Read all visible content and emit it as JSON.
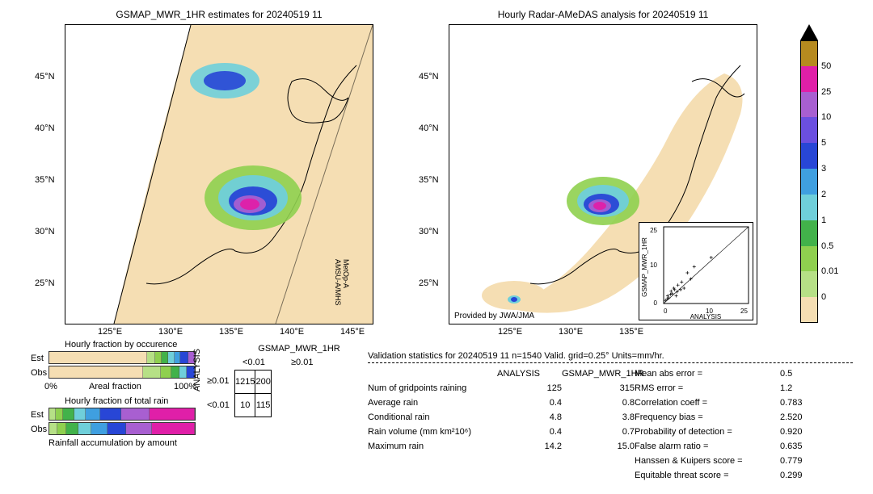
{
  "map_left": {
    "title": "GSMAP_MWR_1HR estimates for 20240519 11",
    "x_ticks": [
      "125°E",
      "130°E",
      "135°E",
      "140°E",
      "145°E"
    ],
    "y_ticks": [
      "25°N",
      "30°N",
      "35°N",
      "40°N",
      "45°N"
    ],
    "background_color": "#f5deb3",
    "swath_boundary_color": "#000000",
    "satellite_label": "MetOp-A\nAMSU-A/MHS",
    "aspect_w": 380,
    "aspect_h": 370
  },
  "map_right": {
    "title": "Hourly Radar-AMeDAS analysis for 20240519 11",
    "x_ticks": [
      "125°E",
      "130°E",
      "135°E"
    ],
    "y_ticks": [
      "25°N",
      "30°N",
      "35°N",
      "40°N",
      "45°N"
    ],
    "background_color": "#ffffff",
    "provided_by": "Provided by JWA/JMA",
    "aspect_w": 380,
    "aspect_h": 370
  },
  "scatter_inset": {
    "xlabel": "ANALYSIS",
    "ylabel": "GSMAP_MWR_1HR",
    "xlim": [
      0,
      25
    ],
    "ylim": [
      0,
      25
    ],
    "ticks": [
      0,
      5,
      10,
      15,
      20,
      25
    ],
    "points": [
      [
        0.5,
        1
      ],
      [
        1,
        1.5
      ],
      [
        1.2,
        2.5
      ],
      [
        1.5,
        1.8
      ],
      [
        2,
        3
      ],
      [
        2.2,
        4
      ],
      [
        2.5,
        3.2
      ],
      [
        3,
        5
      ],
      [
        3.2,
        4.5
      ],
      [
        3.7,
        2.5
      ],
      [
        4,
        3.8
      ],
      [
        4.2,
        6
      ],
      [
        5,
        4.5
      ],
      [
        5.3,
        7
      ],
      [
        6,
        5
      ],
      [
        7,
        10
      ],
      [
        8,
        8
      ],
      [
        9,
        12
      ],
      [
        14,
        15
      ]
    ],
    "marker_color": "#000000",
    "diag_color": "#000000"
  },
  "colorbar": {
    "levels": [
      0,
      0.01,
      0.5,
      1,
      2,
      3,
      5,
      10,
      25,
      50
    ],
    "colors": [
      "#f5deb3",
      "#b6e086",
      "#8fd04f",
      "#42b24a",
      "#6fcfda",
      "#3f9fe0",
      "#2846d6",
      "#6b4fe0",
      "#a85fd1",
      "#e01fa8",
      "#b68a1f"
    ],
    "tick_fontsize": 11
  },
  "hourly_occurrence": {
    "title": "Hourly fraction by occurence",
    "rows": [
      {
        "label": "Est",
        "colors": [
          "#f5deb3",
          "#b6e086",
          "#8fd04f",
          "#42b24a",
          "#6fcfda",
          "#3f9fe0",
          "#2846d6",
          "#a85fd1"
        ],
        "widths": [
          0.7,
          0.05,
          0.04,
          0.04,
          0.04,
          0.04,
          0.05,
          0.04
        ]
      },
      {
        "label": "Obs",
        "colors": [
          "#f5deb3",
          "#b6e086",
          "#8fd04f",
          "#42b24a",
          "#6fcfda",
          "#2846d6"
        ],
        "widths": [
          0.66,
          0.12,
          0.07,
          0.05,
          0.05,
          0.05
        ]
      }
    ],
    "x_left": "0%",
    "x_right": "100%",
    "x_center": "Areal fraction"
  },
  "hourly_total": {
    "title": "Hourly fraction of total rain",
    "rows": [
      {
        "label": "Est",
        "colors": [
          "#b6e086",
          "#8fd04f",
          "#42b24a",
          "#6fcfda",
          "#3f9fe0",
          "#2846d6",
          "#a85fd1",
          "#e01fa8"
        ],
        "widths": [
          0.04,
          0.05,
          0.07,
          0.08,
          0.1,
          0.14,
          0.2,
          0.32
        ]
      },
      {
        "label": "Obs",
        "colors": [
          "#b6e086",
          "#8fd04f",
          "#42b24a",
          "#6fcfda",
          "#3f9fe0",
          "#2846d6",
          "#a85fd1",
          "#e01fa8"
        ],
        "widths": [
          0.05,
          0.06,
          0.08,
          0.09,
          0.11,
          0.13,
          0.18,
          0.3
        ]
      }
    ],
    "subtitle": "Rainfall accumulation by amount"
  },
  "contingency": {
    "title": "GSMAP_MWR_1HR",
    "col_left": "<0.01",
    "col_right": "≥0.01",
    "row_top": "≥0.01",
    "row_bottom": "<0.01",
    "side_label": "ANALYSIS",
    "cells": [
      [
        1215,
        200
      ],
      [
        10,
        115
      ]
    ]
  },
  "stats": {
    "title": "Validation statistics for 20240519 11  n=1540 Valid. grid=0.25° Units=mm/hr.",
    "col_headers": [
      "",
      "ANALYSIS",
      "GSMAP_MWR_1HR"
    ],
    "left_rows": [
      {
        "name": "Num of gridpoints raining",
        "a": "125",
        "g": "315"
      },
      {
        "name": "Average rain",
        "a": "0.4",
        "g": "0.8"
      },
      {
        "name": "Conditional rain",
        "a": "4.8",
        "g": "3.8"
      },
      {
        "name": "Rain volume (mm km²10⁶)",
        "a": "0.4",
        "g": "0.7"
      },
      {
        "name": "Maximum rain",
        "a": "14.2",
        "g": "15.0"
      }
    ],
    "right_rows": [
      {
        "name": "Mean abs error",
        "v": "0.5"
      },
      {
        "name": "RMS error",
        "v": "1.2"
      },
      {
        "name": "Correlation coeff",
        "v": "0.783"
      },
      {
        "name": "Frequency bias",
        "v": "2.520"
      },
      {
        "name": "Probability of detection",
        "v": "0.920"
      },
      {
        "name": "False alarm ratio",
        "v": "0.635"
      },
      {
        "name": "Hanssen & Kuipers score",
        "v": "0.779"
      },
      {
        "name": "Equitable threat score",
        "v": "0.299"
      }
    ]
  },
  "style": {
    "font_family": "sans-serif",
    "title_fontsize": 12,
    "body_fontsize": 11,
    "map_border_color": "#000000",
    "coast_color": "#000000"
  }
}
